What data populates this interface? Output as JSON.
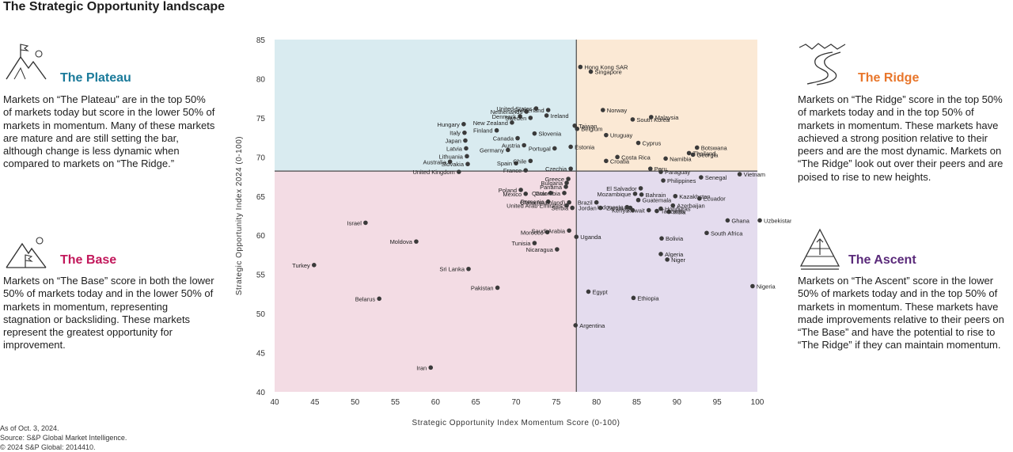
{
  "page": {
    "title": "The Strategic Opportunity landscape",
    "footer": [
      "As of Oct. 3, 2024.",
      "Source: S&P Global Market Intelligence.",
      "© 2024 S&P Global: 2014410."
    ]
  },
  "panels": {
    "plateau": {
      "heading": "The Plateau",
      "color": "#1a7a9a",
      "text": "Markets on “The Plateau” are in the top 50% of markets today but score in the lower 50% of markets in momentum. Many of these markets are mature and are still setting the bar, although change is less dynamic when compared to markets on “The Ridge.”"
    },
    "base": {
      "heading": "The Base",
      "color": "#c2185b",
      "text": "Markets on “The Base” score in both the lower 50% of markets today and in the lower 50% of markets in momentum, representing stagnation or backsliding. These markets represent the greatest opportunity for improvement."
    },
    "ridge": {
      "heading": "The Ridge",
      "color": "#e8762b",
      "text": "Markets on “The Ridge” score in the top 50% of markets today and in the top 50% of markets in momentum. These markets have achieved a strong position relative to their peers and are the most dynamic. Markets on “The Ridge” look out over their peers and are poised to rise to new heights."
    },
    "ascent": {
      "heading": "The Ascent",
      "color": "#5a2a7a",
      "text": "Markets on “The Ascent” score in the lower 50% of markets today and in the top 50% of markets in momentum. These markets have made improvements relative to their peers on “The Base” and have the potential to rise to “The Ridge” if they can maintain momentum."
    }
  },
  "colors": {
    "plateau_bg": "#d9ebf0",
    "ridge_bg": "#fbe9d5",
    "base_bg": "#f3dce4",
    "ascent_bg": "#e4dcee",
    "point": "#3a3a3a",
    "divider": "#4a4a4a"
  },
  "chart_data": {
    "type": "scatter",
    "xlabel": "Strategic Opportunity Index Momentum Score (0-100)",
    "ylabel": "Strategic Opportunity Index 2024 (0-100)",
    "xlim": [
      40,
      100
    ],
    "ylim": [
      40,
      85
    ],
    "xticks": [
      40,
      45,
      50,
      55,
      60,
      65,
      70,
      75,
      80,
      85,
      90,
      95,
      100
    ],
    "yticks": [
      40,
      45,
      50,
      55,
      60,
      65,
      70,
      75,
      80,
      85
    ],
    "divider_x": 77.5,
    "divider_y": 68.2,
    "points": [
      {
        "name": "Hong Kong SAR",
        "x": 78,
        "y": 81.5
      },
      {
        "name": "Singapore",
        "x": 79.3,
        "y": 80.9
      },
      {
        "name": "Switzerland",
        "x": 74,
        "y": 76
      },
      {
        "name": "United States",
        "x": 72.5,
        "y": 76.2
      },
      {
        "name": "Netherlands",
        "x": 71.3,
        "y": 75.8
      },
      {
        "name": "Denmark",
        "x": 70.5,
        "y": 75.2
      },
      {
        "name": "Sweden",
        "x": 71.8,
        "y": 75
      },
      {
        "name": "Ireland",
        "x": 73.8,
        "y": 75.3
      },
      {
        "name": "Hungary",
        "x": 63.5,
        "y": 74.2
      },
      {
        "name": "Italy",
        "x": 63.6,
        "y": 73.1
      },
      {
        "name": "Japan",
        "x": 63.7,
        "y": 72.1
      },
      {
        "name": "Latvia",
        "x": 63.8,
        "y": 71.1
      },
      {
        "name": "Lithuania",
        "x": 63.9,
        "y": 70.1
      },
      {
        "name": "Slovakia",
        "x": 64,
        "y": 69.1
      },
      {
        "name": "New Zealand",
        "x": 69.5,
        "y": 74.4
      },
      {
        "name": "Finland",
        "x": 67.6,
        "y": 73.4
      },
      {
        "name": "Slovenia",
        "x": 72.3,
        "y": 73
      },
      {
        "name": "Canada",
        "x": 70.2,
        "y": 72.4
      },
      {
        "name": "Austria",
        "x": 71,
        "y": 71.5
      },
      {
        "name": "Germany",
        "x": 69,
        "y": 70.9
      },
      {
        "name": "Portugal",
        "x": 74.8,
        "y": 71.1
      },
      {
        "name": "Estonia",
        "x": 76.8,
        "y": 71.3
      },
      {
        "name": "Australia",
        "x": 61.8,
        "y": 69.4
      },
      {
        "name": "Spain",
        "x": 70,
        "y": 69.2
      },
      {
        "name": "Chile",
        "x": 71.8,
        "y": 69.5
      },
      {
        "name": "France",
        "x": 71.2,
        "y": 68.3
      },
      {
        "name": "Czechia",
        "x": 76.8,
        "y": 68.5
      },
      {
        "name": "United Kingdom",
        "x": 62.9,
        "y": 68.1
      },
      {
        "name": "Taiwan",
        "x": 77.3,
        "y": 74
      },
      {
        "name": "Norway",
        "x": 80.8,
        "y": 76
      },
      {
        "name": "South Korea",
        "x": 84.5,
        "y": 74.8
      },
      {
        "name": "Malaysia",
        "x": 86.8,
        "y": 75.1
      },
      {
        "name": "Belgium",
        "x": 77.6,
        "y": 73.6
      },
      {
        "name": "Uruguay",
        "x": 81.2,
        "y": 72.8
      },
      {
        "name": "Cyprus",
        "x": 85.2,
        "y": 71.8
      },
      {
        "name": "Thailand",
        "x": 91.5,
        "y": 70.5
      },
      {
        "name": "Botswana",
        "x": 92.5,
        "y": 71.2
      },
      {
        "name": "Georgia",
        "x": 92,
        "y": 70.3
      },
      {
        "name": "Costa Rica",
        "x": 82.6,
        "y": 70
      },
      {
        "name": "Croatia",
        "x": 81.2,
        "y": 69.5
      },
      {
        "name": "Namibia",
        "x": 88.6,
        "y": 69.8
      },
      {
        "name": "Peru",
        "x": 86.7,
        "y": 68.5
      },
      {
        "name": "Paraguay",
        "x": 88,
        "y": 68.1
      },
      {
        "name": "Senegal",
        "x": 93,
        "y": 67.4
      },
      {
        "name": "Vietnam",
        "x": 97.8,
        "y": 67.8
      },
      {
        "name": "Philippines",
        "x": 88.3,
        "y": 67
      },
      {
        "name": "El Salvador",
        "x": 85.5,
        "y": 66
      },
      {
        "name": "Mozambique",
        "x": 84.8,
        "y": 65.3
      },
      {
        "name": "Bahrain",
        "x": 85.6,
        "y": 65.2
      },
      {
        "name": "Guatemala",
        "x": 85.2,
        "y": 64.5
      },
      {
        "name": "Kazakhstan",
        "x": 89.8,
        "y": 65
      },
      {
        "name": "Ecuador",
        "x": 92.8,
        "y": 64.7
      },
      {
        "name": "Azerbaijan",
        "x": 89.5,
        "y": 63.8
      },
      {
        "name": "India",
        "x": 89,
        "y": 63
      },
      {
        "name": "Honduras",
        "x": 88,
        "y": 63.4
      },
      {
        "name": "Tanzania",
        "x": 87.5,
        "y": 63.1
      },
      {
        "name": "Kuwait",
        "x": 86.5,
        "y": 63.2
      },
      {
        "name": "Kenya",
        "x": 84.5,
        "y": 63.2
      },
      {
        "name": "Zambia",
        "x": 84.2,
        "y": 63.5
      },
      {
        "name": "Indonesia",
        "x": 83.8,
        "y": 63.6
      },
      {
        "name": "Jordan",
        "x": 80.5,
        "y": 63.5
      },
      {
        "name": "Brazil",
        "x": 80,
        "y": 64.2
      },
      {
        "name": "Ghana",
        "x": 96.3,
        "y": 61.9
      },
      {
        "name": "Uzbekistan",
        "x": 100.3,
        "y": 61.9
      },
      {
        "name": "South Africa",
        "x": 93.7,
        "y": 60.3
      },
      {
        "name": "Bolivia",
        "x": 88.1,
        "y": 59.6
      },
      {
        "name": "Algeria",
        "x": 88,
        "y": 57.6
      },
      {
        "name": "Niger",
        "x": 88.8,
        "y": 56.9
      },
      {
        "name": "Nigeria",
        "x": 99.4,
        "y": 53.5
      },
      {
        "name": "Ethiopia",
        "x": 84.6,
        "y": 52
      },
      {
        "name": "Egypt",
        "x": 79,
        "y": 52.8
      },
      {
        "name": "Argentina",
        "x": 77.4,
        "y": 48.5
      },
      {
        "name": "Greece",
        "x": 76.5,
        "y": 67.2
      },
      {
        "name": "Bulgaria",
        "x": 76.3,
        "y": 66.7
      },
      {
        "name": "Panama",
        "x": 76.2,
        "y": 66.2
      },
      {
        "name": "Colombia",
        "x": 76,
        "y": 65.4
      },
      {
        "name": "Poland",
        "x": 70.6,
        "y": 65.8
      },
      {
        "name": "Mexico",
        "x": 71.2,
        "y": 65.3
      },
      {
        "name": "Qatar",
        "x": 74.3,
        "y": 65.4
      },
      {
        "name": "Romania",
        "x": 74,
        "y": 64.3
      },
      {
        "name": "United Arab Emirates",
        "x": 76.3,
        "y": 63.8
      },
      {
        "name": "China (mainland)",
        "x": 76.6,
        "y": 64.2
      },
      {
        "name": "Serbia",
        "x": 77,
        "y": 63.5
      },
      {
        "name": "Morocco",
        "x": 73.9,
        "y": 60.4
      },
      {
        "name": "Saudi Arabia",
        "x": 76.6,
        "y": 60.6
      },
      {
        "name": "Uganda",
        "x": 77.5,
        "y": 59.8
      },
      {
        "name": "Tunisia",
        "x": 72.3,
        "y": 59
      },
      {
        "name": "Nicaragua",
        "x": 75.1,
        "y": 58.2
      },
      {
        "name": "Israel",
        "x": 51.3,
        "y": 61.6
      },
      {
        "name": "Moldova",
        "x": 57.6,
        "y": 59.2
      },
      {
        "name": "Turkey",
        "x": 44.9,
        "y": 56.2
      },
      {
        "name": "Sri Lanka",
        "x": 64.1,
        "y": 55.7
      },
      {
        "name": "Pakistan",
        "x": 67.7,
        "y": 53.3
      },
      {
        "name": "Belarus",
        "x": 53,
        "y": 51.9
      },
      {
        "name": "Iran",
        "x": 59.4,
        "y": 43.1
      }
    ]
  }
}
